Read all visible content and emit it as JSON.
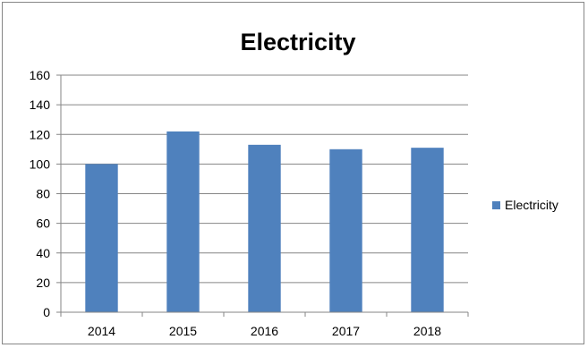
{
  "chart_data": {
    "type": "bar",
    "title": "Electricity",
    "categories": [
      "2014",
      "2015",
      "2016",
      "2017",
      "2018"
    ],
    "series": [
      {
        "name": "Electricity",
        "values": [
          100,
          122,
          113,
          110,
          111
        ],
        "color": "#4F81BD"
      }
    ],
    "ylim": [
      0,
      160
    ],
    "yticks": [
      0,
      20,
      40,
      60,
      80,
      100,
      120,
      140,
      160
    ],
    "grid": true,
    "legend_position": "right",
    "colors": {
      "grid": "#868686",
      "axis": "#868686",
      "border": "#868686"
    }
  }
}
